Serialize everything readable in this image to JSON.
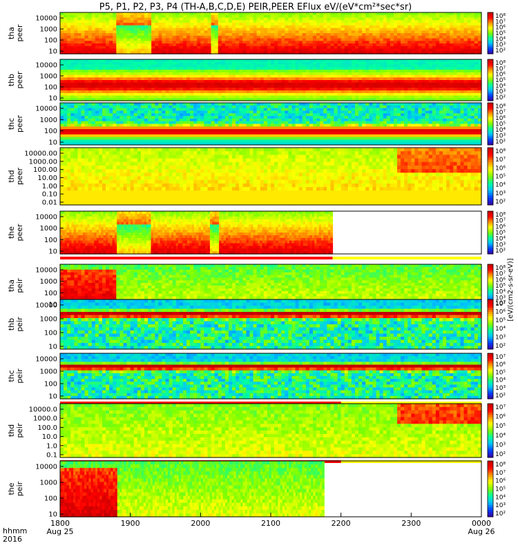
{
  "chart_data": {
    "type": "heatmap",
    "title": "P5, P1, P2, P3, P4 (TH-A,B,C,D,E) PEIR,PEER EFlux eV/(eV*cm²*sec*sr)",
    "x_label_lines": [
      "hhmm",
      "2016"
    ],
    "x_ticks": [
      {
        "t": 1800,
        "label": "1800",
        "sub": "Aug 25"
      },
      {
        "t": 1900,
        "label": "1900",
        "sub": ""
      },
      {
        "t": 2000,
        "label": "2000",
        "sub": ""
      },
      {
        "t": 2100,
        "label": "2100",
        "sub": ""
      },
      {
        "t": 2200,
        "label": "2200",
        "sub": ""
      },
      {
        "t": 2300,
        "label": "2300",
        "sub": ""
      },
      {
        "t": 2400,
        "label": "0000",
        "sub": "Aug 26"
      }
    ],
    "colorbar_label": "[eV/(cm2-s-sr-eV)]",
    "panels": [
      {
        "id": "tha-peer",
        "ylabel": [
          "tha",
          "peer"
        ],
        "yticks": [
          "10000",
          "1000",
          "100",
          "10"
        ],
        "cbticks": [
          "10⁸",
          "10⁷",
          "10⁶",
          "10⁵",
          "10⁴",
          "10³",
          "10²"
        ],
        "data_end": 2400,
        "flag": false,
        "mode": "edge"
      },
      {
        "id": "thb-peer",
        "ylabel": [
          "thb",
          "peer"
        ],
        "yticks": [
          "10000",
          "1000",
          "100",
          "10"
        ],
        "cbticks": [
          "10⁸",
          "10⁷",
          "10⁶",
          "10⁵",
          "10⁴",
          "10³",
          "10²"
        ],
        "data_end": 2400,
        "flag": false,
        "mode": "quiet"
      },
      {
        "id": "thc-peer",
        "ylabel": [
          "thc",
          "peer"
        ],
        "yticks": [
          "10000",
          "1000",
          "100",
          "10"
        ],
        "cbticks": [
          "10⁸",
          "10⁷",
          "10⁶",
          "10⁵",
          "10⁴",
          "10³",
          "10²"
        ],
        "data_end": 2400,
        "flag": false,
        "mode": "noisy"
      },
      {
        "id": "thd-peer",
        "ylabel": [
          "thd",
          "peer"
        ],
        "yticks": [
          "10000.00",
          "1000.00",
          "100.00",
          "10.00",
          "1.00",
          "0.10",
          "0.01"
        ],
        "cbticks": [
          "10⁸",
          "10⁷",
          "10⁶",
          "10⁵",
          "10⁴",
          "10³",
          "10²"
        ],
        "data_end": 2400,
        "flag": false,
        "mode": "thd"
      },
      {
        "id": "the-peer",
        "ylabel": [
          "the",
          "peer"
        ],
        "yticks": [
          "10000",
          "1000",
          "100",
          "10"
        ],
        "cbticks": [
          "10⁸",
          "10⁷",
          "10⁶",
          "10⁵",
          "10⁴",
          "10³",
          "10²"
        ],
        "data_end": 2188,
        "flag": true,
        "mode": "edge"
      },
      {
        "id": "tha-peir",
        "ylabel": [
          "tha",
          "peir"
        ],
        "yticks": [
          "10000",
          "1000",
          "100",
          "10"
        ],
        "cbticks": [
          "10⁸",
          "10⁷",
          "10⁶",
          "10⁵",
          "10⁴",
          "10³",
          "10²"
        ],
        "data_end": 2400,
        "flag": true,
        "mode": "ion"
      },
      {
        "id": "thb-peir",
        "ylabel": [
          "thb",
          "peir"
        ],
        "yticks": [
          "10000",
          "1000",
          "100",
          "10"
        ],
        "cbticks": [
          "10⁷",
          "10⁶",
          "10⁵",
          "10⁴",
          "10³",
          "10²"
        ],
        "data_end": 2400,
        "flag": false,
        "mode": "ionquiet"
      },
      {
        "id": "thc-peir",
        "ylabel": [
          "thc",
          "peir"
        ],
        "yticks": [
          "10000",
          "1000",
          "100",
          "10"
        ],
        "cbticks": [
          "10⁷",
          "10⁶",
          "10⁵",
          "10⁴",
          "10³",
          "10²"
        ],
        "data_end": 2400,
        "flag": true,
        "mode": "ionquiet"
      },
      {
        "id": "thd-peir",
        "ylabel": [
          "thd",
          "peir"
        ],
        "yticks": [
          "10000.0",
          "1000.0",
          "100.0",
          "10.0",
          "1.0",
          "0.1"
        ],
        "cbticks": [
          "10⁷",
          "10⁶",
          "10⁵",
          "10⁴",
          "10³",
          "10²"
        ],
        "data_end": 2400,
        "flag": true,
        "mode": "thdion"
      },
      {
        "id": "the-peir",
        "ylabel": [
          "the",
          "peir"
        ],
        "yticks": [
          "10000",
          "1000",
          "100",
          "10"
        ],
        "cbticks": [
          "10⁸",
          "10⁷",
          "10⁶",
          "10⁵",
          "10⁴",
          "10³",
          "10²"
        ],
        "data_end": 2176,
        "flag": false,
        "mode": "ion"
      }
    ],
    "colormap": [
      "#3a00a0",
      "#0040ff",
      "#00c0ff",
      "#00ffa0",
      "#80ff00",
      "#ffff00",
      "#ff9000",
      "#ff0000",
      "#c00000"
    ]
  }
}
